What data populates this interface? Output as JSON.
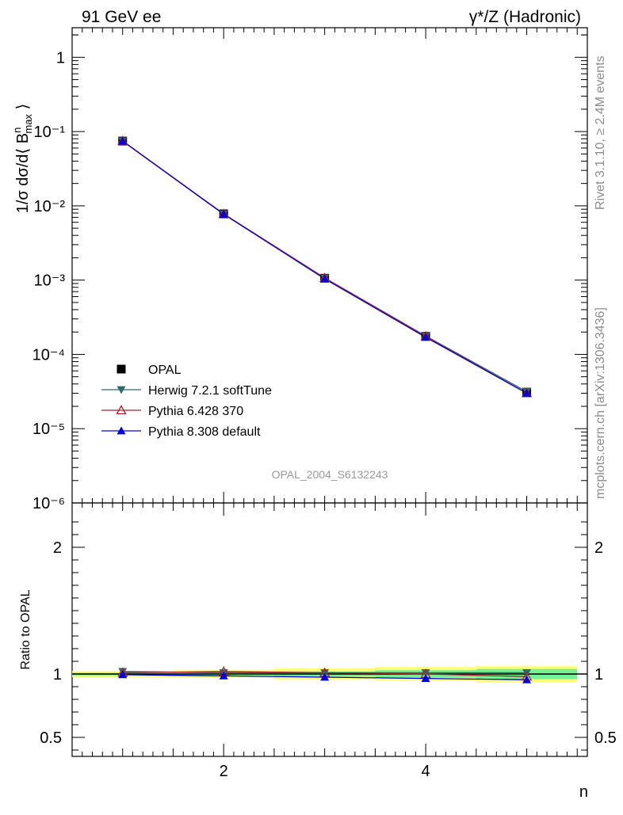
{
  "header": {
    "left": "91 GeV ee",
    "right": "γ*/Z (Hadronic)"
  },
  "side_text": {
    "upper": "Rivet 3.1.10, ≥ 2.4M events",
    "lower": "mcplots.cern.ch [arXiv:1306.3436]"
  },
  "watermark": "OPAL_2004_S6132243",
  "chart_data": [
    {
      "type": "line",
      "panel": "main",
      "ylabel": "1/σ dσ/d⟨ Bⁿmax ⟩",
      "yscale": "log",
      "ylim": [
        1e-06,
        2.5
      ],
      "xlim": [
        0.5,
        5.6
      ],
      "x": [
        1,
        2,
        3,
        4,
        5
      ],
      "ytick_labels": [
        "1",
        "10⁻¹",
        "10⁻²",
        "10⁻³",
        "10⁻⁴",
        "10⁻⁵",
        "10⁻⁶"
      ],
      "series": [
        {
          "name": "OPAL",
          "marker": "square",
          "color": "#000000",
          "values": [
            0.0745,
            0.0078,
            0.00106,
            0.000175,
            3.1e-05
          ]
        },
        {
          "name": "Herwig 7.2.1 softTune",
          "marker": "triangle-down",
          "color": "#2f6a6a",
          "values": [
            0.0748,
            0.0078,
            0.00107,
            0.000177,
            3.15e-05
          ]
        },
        {
          "name": "Pythia 6.428 370",
          "marker": "triangle-up-open",
          "color": "#b01e2d",
          "values": [
            0.0748,
            0.0078,
            0.00107,
            0.000175,
            3e-05
          ]
        },
        {
          "name": "Pythia 8.308 default",
          "marker": "triangle-up",
          "color": "#0000e0",
          "values": [
            0.0742,
            0.0077,
            0.00104,
            0.00017,
            3e-05
          ]
        }
      ]
    },
    {
      "type": "line",
      "panel": "ratio",
      "ylabel": "Ratio to OPAL",
      "xlabel": "n",
      "ylim": [
        0.35,
        2.35
      ],
      "xlim": [
        0.5,
        5.6
      ],
      "x": [
        1,
        2,
        3,
        4,
        5
      ],
      "ytick_labels": [
        "0.5",
        "1",
        "2"
      ],
      "xtick_labels": [
        "2",
        "4"
      ],
      "bands": {
        "outer_color": "#ffff66",
        "inner_color": "#66ee99",
        "outer_halfwidth": [
          0.025,
          0.03,
          0.045,
          0.055,
          0.065
        ],
        "inner_halfwidth": [
          0.01,
          0.012,
          0.02,
          0.03,
          0.04
        ]
      },
      "series": [
        {
          "name": "Herwig 7.2.1 softTune",
          "values": [
            1.02,
            1.01,
            1.01,
            1.01,
            1.01
          ]
        },
        {
          "name": "Pythia 6.428 370",
          "values": [
            1.01,
            1.02,
            1.01,
            1.0,
            0.98
          ]
        },
        {
          "name": "Pythia 8.308 default",
          "values": [
            0.995,
            0.985,
            0.975,
            0.965,
            0.955
          ]
        }
      ]
    }
  ]
}
